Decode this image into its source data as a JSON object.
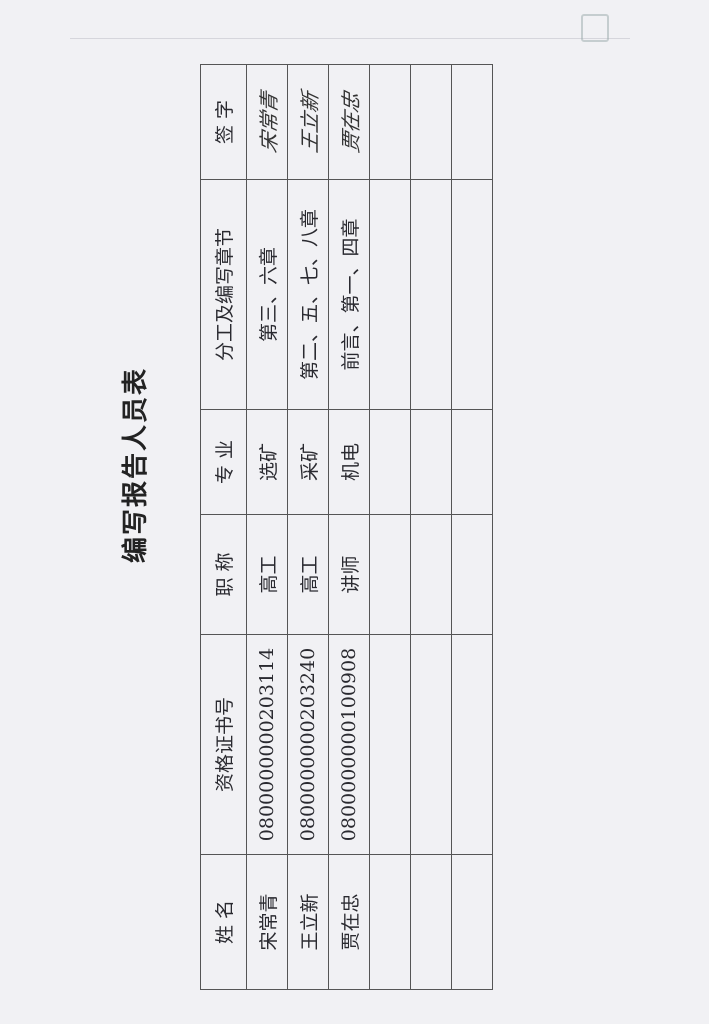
{
  "title": "编写报告人员表",
  "table": {
    "headers": [
      "姓  名",
      "资格证书号",
      "职  称",
      "专  业",
      "分工及编写章节",
      "签  字"
    ],
    "rows": [
      {
        "name": "宋常青",
        "cert": "0800000000203114",
        "title": "高工",
        "major": "选矿",
        "chapters": "第三、六章",
        "signature": "宋常青"
      },
      {
        "name": "王立新",
        "cert": "0800000000203240",
        "title": "高工",
        "major": "采矿",
        "chapters": "第二、五、七、八章",
        "signature": "王立新"
      },
      {
        "name": "贾在忠",
        "cert": "0800000000100908",
        "title": "讲师",
        "major": "机电",
        "chapters": "前言、第一、四章",
        "signature": "贾在忠"
      }
    ]
  }
}
